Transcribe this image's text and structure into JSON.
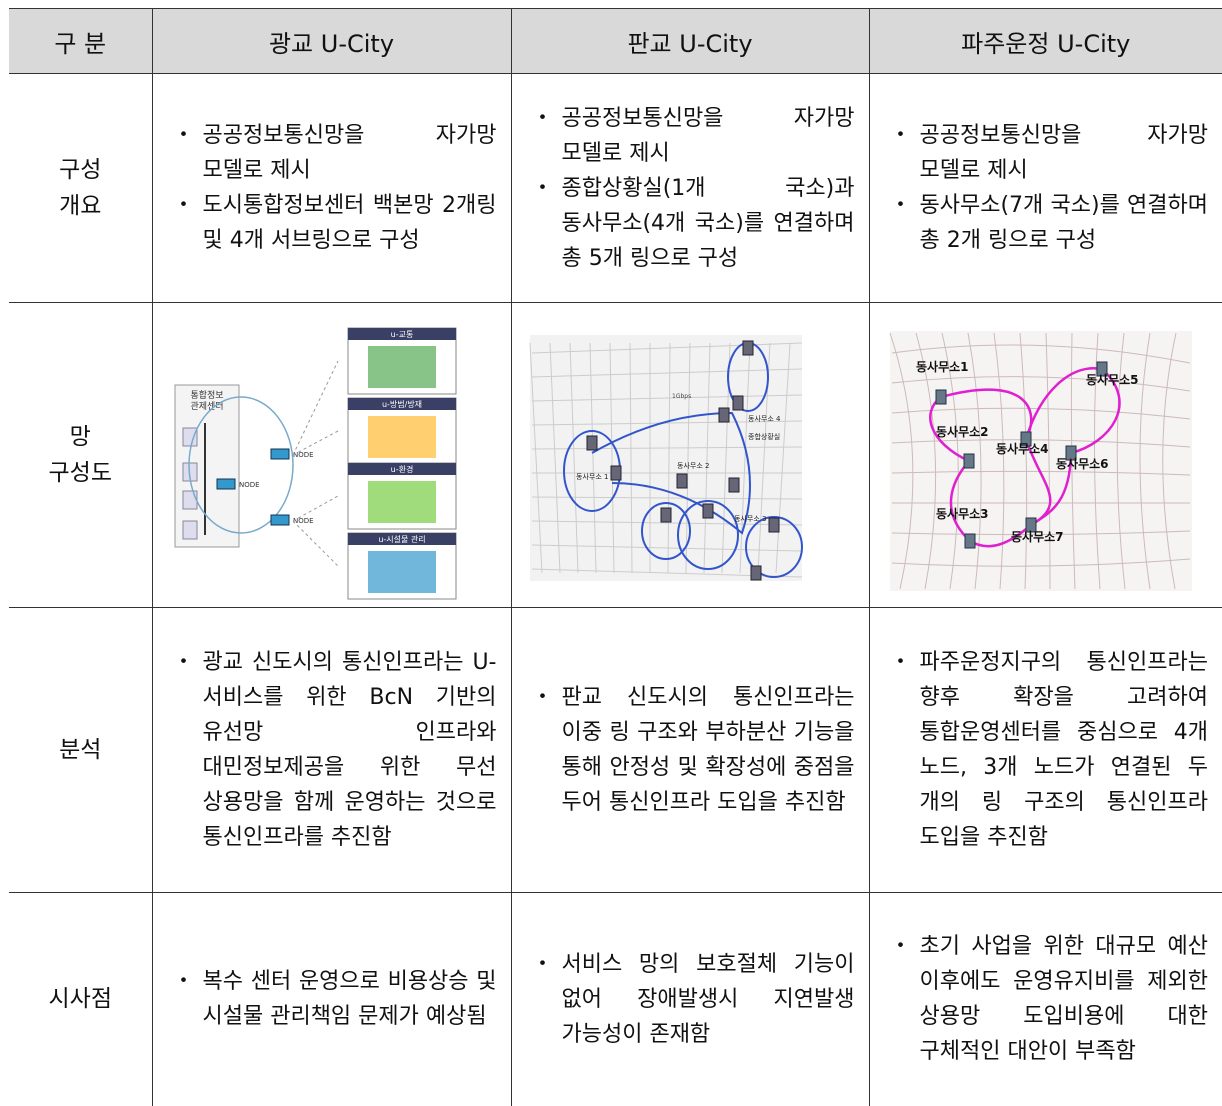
{
  "table": {
    "header": [
      "구 분",
      "광교 U-City",
      "판교 U-City",
      "파주운정 U-City"
    ],
    "rows": [
      {
        "label": "구성\n개요",
        "cells": [
          [
            "공공정보통신망을 자가망 모델로 제시",
            "도시통합정보센터 백본망 2개링 및 4개 서브링으로 구성"
          ],
          [
            "공공정보통신망을 자가망 모델로 제시",
            "종합상황실(1개 국소)과 동사무소(4개 국소)를 연결하며 총 5개 링으로 구성"
          ],
          [
            "공공정보통신망을 자가망 모델로 제시",
            "동사무소(7개 국소)를 연결하며 총 2개 링으로 구성"
          ]
        ]
      },
      {
        "label": "망\n구성도",
        "cells": [
          {
            "labels": [
              "u-교통",
              "u-방범/방재",
              "u-환경",
              "u-시설물 관리",
              "통합정보",
              "관제센터",
              "NODE",
              "NODE",
              "NODE"
            ]
          },
          {
            "labels": [
              "동사무소 4",
              "종합상황실",
              "동사무소 1",
              "동사무소 2",
              "동사무소 3",
              "1Gbps"
            ]
          },
          {
            "labels": [
              "동사무소1",
              "동사무소5",
              "동사무소2",
              "동사무소4",
              "동사무소6",
              "동사무소3",
              "동사무소7"
            ]
          }
        ]
      },
      {
        "label": "분석",
        "cells": [
          [
            "광교 신도시의 통신인프라는 U-서비스를 위한 BcN 기반의 유선망 인프라와 대민정보제공을 위한 무선 상용망을 함께 운영하는 것으로 통신인프라를 추진함"
          ],
          [
            "판교 신도시의 통신인프라는 이중 링 구조와 부하분산 기능을 통해 안정성 및 확장성에 중점을 두어 통신인프라 도입을 추진함"
          ],
          [
            "파주운정지구의 통신인프라는 향후 확장을 고려하여 통합운영센터를 중심으로 4개 노드, 3개 노드가 연결된 두 개의 링 구조의 통신인프라 도입을 추진함"
          ]
        ]
      },
      {
        "label": "시사점",
        "cells": [
          [
            "복수 센터 운영으로 비용상승 및 시설물 관리책임 문제가 예상됨"
          ],
          [
            "서비스 망의 보호절체 기능이 없어 장애발생시 지연발생 가능성이 존재함"
          ],
          [
            "초기 사업을 위한 대규모 예산 이후에도 운영유지비를 제외한 상용망 도입비용에 대한 구체적인 대안이 부족함"
          ]
        ]
      }
    ]
  }
}
